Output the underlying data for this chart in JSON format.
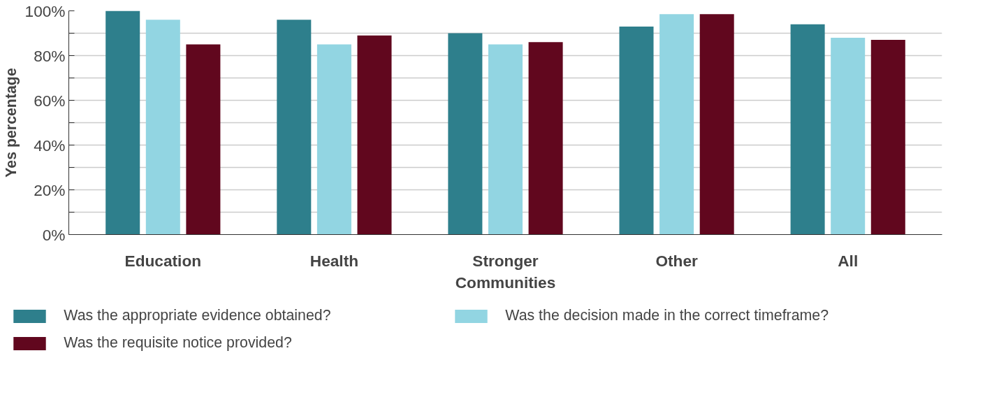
{
  "chart_data": {
    "type": "bar",
    "ylabel": "Yes percentage",
    "categories": [
      "Education",
      "Health",
      "Stronger\nCommunities",
      "Other",
      "All"
    ],
    "series": [
      {
        "name": "Was the appropriate evidence obtained?",
        "color": "#2e7f8c",
        "values": [
          100,
          96,
          90,
          93,
          94
        ]
      },
      {
        "name": "Was the decision made in the correct timeframe?",
        "color": "#92d5e2",
        "values": [
          96,
          85,
          85,
          98.5,
          88
        ]
      },
      {
        "name": "Was the requisite notice provided?",
        "color": "#61071e",
        "values": [
          85,
          89,
          86,
          98.5,
          87
        ]
      }
    ],
    "ylim": [
      0,
      100
    ],
    "yticks": [
      {
        "value": 0,
        "label": "0%"
      },
      {
        "value": 10,
        "label": null
      },
      {
        "value": 20,
        "label": "20%"
      },
      {
        "value": 30,
        "label": null
      },
      {
        "value": 40,
        "label": "40%"
      },
      {
        "value": 50,
        "label": null
      },
      {
        "value": 60,
        "label": "60%"
      },
      {
        "value": 70,
        "label": null
      },
      {
        "value": 80,
        "label": "80%"
      },
      {
        "value": 90,
        "label": null
      },
      {
        "value": 100,
        "label": "100%"
      }
    ],
    "grid": "y",
    "legend": "bottom"
  }
}
